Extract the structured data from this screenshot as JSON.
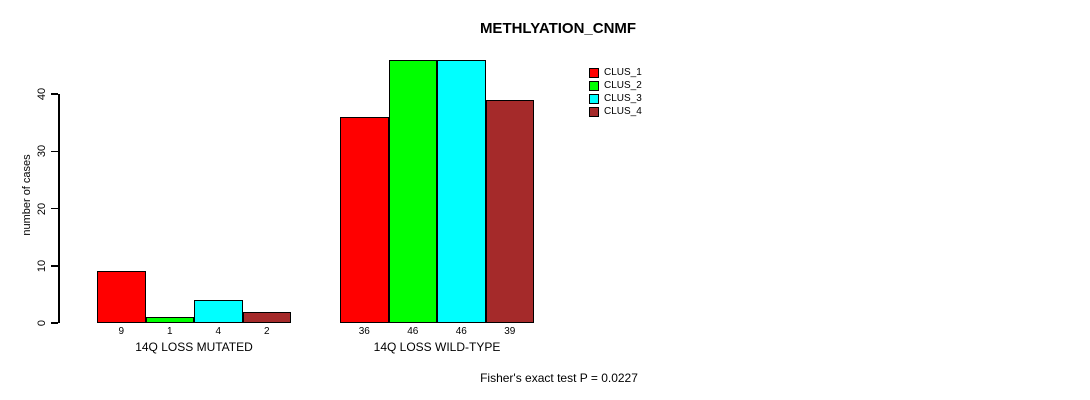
{
  "title": "METHLYATION_CNMF",
  "chart_data": {
    "type": "bar",
    "title": "METHLYATION_CNMF",
    "xlabel": "",
    "ylabel": "number of cases",
    "ylim": [
      0,
      40
    ],
    "yticks": [
      0,
      10,
      20,
      30,
      40
    ],
    "categories": [
      "14Q LOSS MUTATED",
      "14Q LOSS WILD-TYPE"
    ],
    "series": [
      {
        "name": "CLUS_1",
        "color": "#FF0000",
        "values": [
          9,
          36
        ]
      },
      {
        "name": "CLUS_2",
        "color": "#00FF00",
        "values": [
          1,
          46
        ]
      },
      {
        "name": "CLUS_3",
        "color": "#00FFFF",
        "values": [
          4,
          46
        ]
      },
      {
        "name": "CLUS_4",
        "color": "#A52A2A",
        "values": [
          2,
          39
        ]
      }
    ],
    "bar_value_labels": true,
    "grid": false,
    "legend_position": "top-right",
    "annotation": "Fisher's exact test P = 0.0227"
  }
}
